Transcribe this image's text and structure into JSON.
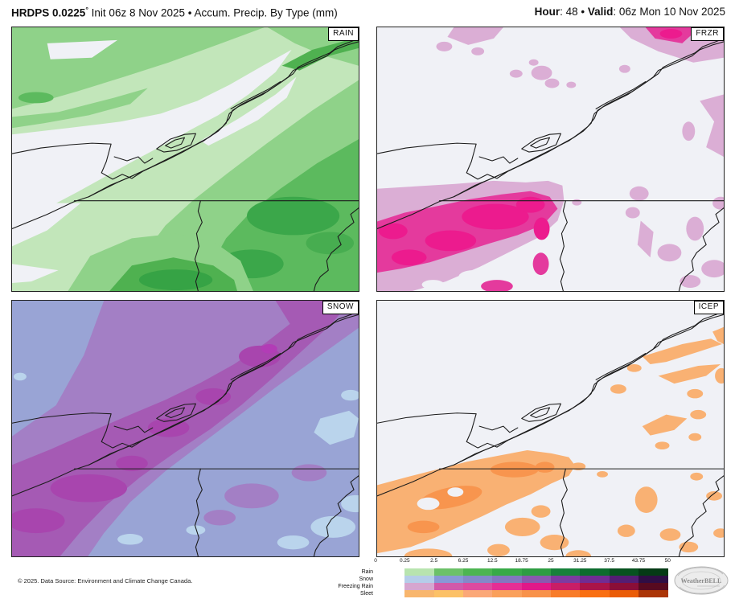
{
  "header": {
    "model": "HRDPS 0.0225",
    "degree": "°",
    "subtitle": " Init 06z 8 Nov 2025 • Accum. Precip. By Type (mm)",
    "hour_label": "Hour",
    "hour_value": ": 48",
    "sep": " • ",
    "valid_label": "Valid",
    "valid_value": ": 06z Mon 10 Nov 2025"
  },
  "panels": [
    {
      "label": "RAIN"
    },
    {
      "label": "FRZR"
    },
    {
      "label": "SNOW"
    },
    {
      "label": "ICEP"
    }
  ],
  "legend": {
    "tick_labels": [
      "0",
      "0.25",
      "2.5",
      "6.25",
      "12.5",
      "18.75",
      "25",
      "31.25",
      "37.5",
      "43.75",
      "50"
    ],
    "rows": [
      {
        "label": "Rain",
        "colors": [
          "#b8e4af",
          "#6cc168",
          "#4db551",
          "#38aa47",
          "#2e9d42",
          "#17813a",
          "#0d6c2e",
          "#07521f",
          "#053a15"
        ]
      },
      {
        "label": "Snow",
        "colors": [
          "#b5cde9",
          "#8899d6",
          "#8489c8",
          "#8377bf",
          "#8a59ae",
          "#7d3ba0",
          "#712c93",
          "#541d73",
          "#2f0d45"
        ]
      },
      {
        "label": "Freezing Rain",
        "colors": [
          "#d6a6cf",
          "#d15aa9",
          "#dd4a9f",
          "#e52e94",
          "#e11888",
          "#c91e66",
          "#aa1448",
          "#8a0e37",
          "#570a20"
        ]
      },
      {
        "label": "Sleet",
        "colors": [
          "#f8b66d",
          "#fcc167",
          "#fba878",
          "#faa05b",
          "#f8924a",
          "#f87c29",
          "#f96f12",
          "#ea5c07",
          "#ab3507"
        ]
      }
    ]
  },
  "footer": {
    "copyright": "© 2025. Data Source: Environment and Climate Change Canada."
  },
  "logo": {
    "text": "WeatherBELL"
  }
}
